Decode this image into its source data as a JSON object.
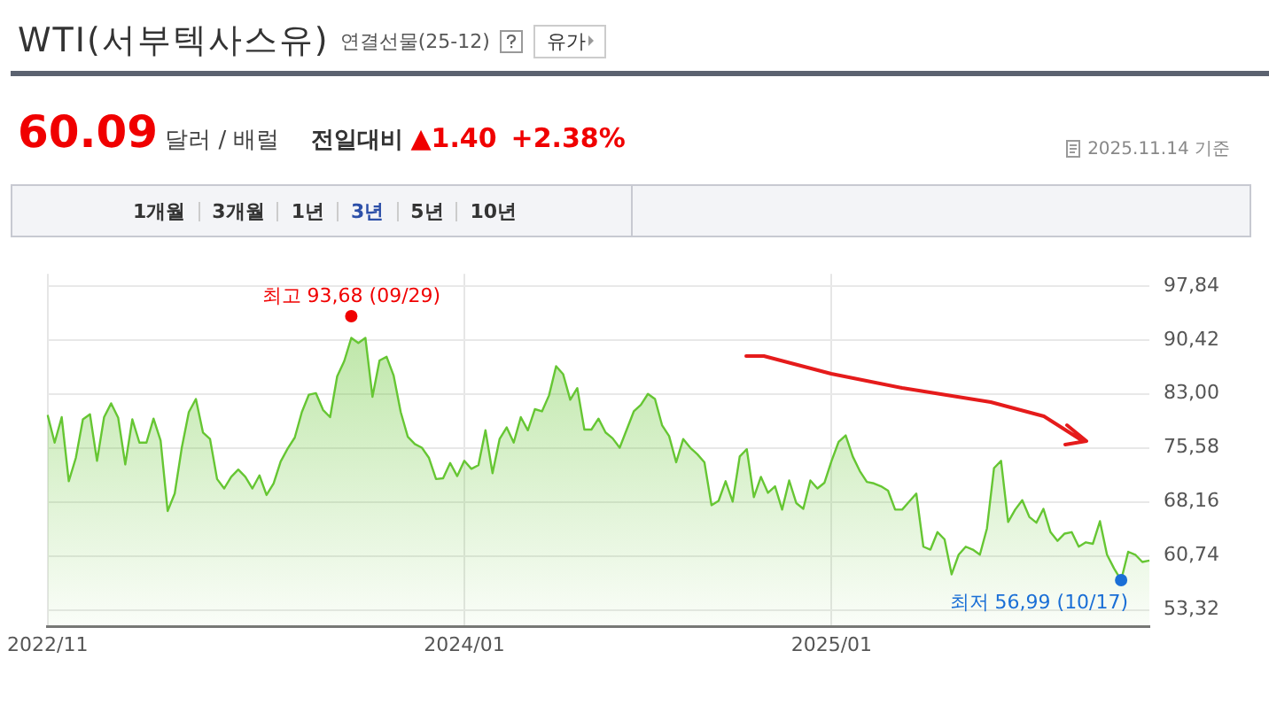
{
  "chart_data": {
    "type": "area",
    "title": "WTI(서부텍사스유)",
    "subtitle": "연결선물(25-12)",
    "categories": [
      "2022/11",
      null,
      null,
      null,
      null,
      null,
      null,
      null,
      null,
      null,
      null,
      null,
      null,
      null,
      null,
      null,
      null,
      null,
      null,
      null,
      null,
      null,
      null,
      null,
      null,
      null,
      null,
      null,
      null,
      null,
      null,
      null,
      null,
      null,
      null,
      null,
      null,
      null,
      null,
      null,
      null,
      null,
      null,
      null,
      null,
      null,
      null,
      null,
      null,
      null,
      null,
      null,
      null,
      null,
      null,
      null,
      null,
      null,
      null,
      "2024/01",
      null,
      null,
      null,
      null,
      null,
      null,
      null,
      null,
      null,
      null,
      null,
      null,
      null,
      null,
      null,
      null,
      null,
      null,
      null,
      null,
      null,
      null,
      null,
      null,
      null,
      null,
      null,
      null,
      null,
      null,
      null,
      null,
      null,
      null,
      null,
      null,
      null,
      null,
      null,
      null,
      null,
      null,
      null,
      null,
      null,
      null,
      null,
      null,
      null,
      null,
      null,
      "2025/01",
      null,
      null,
      null,
      null,
      null,
      null,
      null,
      null,
      null,
      null,
      null,
      null,
      null,
      null,
      null,
      null,
      null,
      null,
      null,
      null,
      null,
      null,
      null,
      null,
      null,
      null,
      null,
      null,
      null,
      null,
      null,
      null,
      null,
      null,
      null,
      null,
      null,
      null,
      null,
      null,
      null,
      null,
      null,
      null,
      null
    ],
    "series": [
      {
        "color": "#66c633",
        "values": [
          80.1,
          76.3,
          79.8,
          71.0,
          74.2,
          79.5,
          80.2,
          73.8,
          79.8,
          81.7,
          79.7,
          73.3,
          79.5,
          76.3,
          76.3,
          79.6,
          76.6,
          66.9,
          69.3,
          75.6,
          80.5,
          82.3,
          77.7,
          76.8,
          71.3,
          70.0,
          71.6,
          72.6,
          71.6,
          70.0,
          71.8,
          69.1,
          70.7,
          73.7,
          75.5,
          77.0,
          80.5,
          82.9,
          83.1,
          80.8,
          79.8,
          85.4,
          87.5,
          90.7,
          90.0,
          90.7,
          82.6,
          87.6,
          88.1,
          85.5,
          80.5,
          77.1,
          76.1,
          75.6,
          74.2,
          71.3,
          71.4,
          73.5,
          71.7,
          73.8,
          72.7,
          73.2,
          78.0,
          72.1,
          76.8,
          78.4,
          76.3,
          79.8,
          78.0,
          80.9,
          80.6,
          82.8,
          86.8,
          85.7,
          82.2,
          83.8,
          78.1,
          78.1,
          79.6,
          77.7,
          76.9,
          75.6,
          78.1,
          80.6,
          81.5,
          83.0,
          82.3,
          78.7,
          77.2,
          73.6,
          76.8,
          75.6,
          74.7,
          73.6,
          67.7,
          68.3,
          71.0,
          68.2,
          74.4,
          75.4,
          68.8,
          71.6,
          69.4,
          70.3,
          67.1,
          71.1,
          68.0,
          67.2,
          71.1,
          70.0,
          70.8,
          73.8,
          76.4,
          77.3,
          74.4,
          72.4,
          70.9,
          70.7,
          70.3,
          69.7,
          67.1,
          67.1,
          68.2,
          69.3,
          62.0,
          61.6,
          64.0,
          63.0,
          58.2,
          60.9,
          62.0,
          61.6,
          60.9,
          64.5,
          72.8,
          73.8,
          65.4,
          67.1,
          68.4,
          66.1,
          65.3,
          67.2,
          64.0,
          62.8,
          63.8,
          64.0,
          62.0,
          62.6,
          62.4,
          65.5,
          60.9,
          59.0,
          57.4,
          61.3,
          60.9,
          59.9,
          60.1
        ]
      }
    ],
    "ylim": [
      51,
      99.5
    ],
    "yticks": [
      {
        "value": 53.32,
        "label": "53,32"
      },
      {
        "value": 60.74,
        "label": "60,74"
      },
      {
        "value": 68.16,
        "label": "68,16"
      },
      {
        "value": 75.58,
        "label": "75,58"
      },
      {
        "value": 83.0,
        "label": "83,00"
      },
      {
        "value": 90.42,
        "label": "90,42"
      },
      {
        "value": 97.84,
        "label": "97,84"
      }
    ],
    "grid": true,
    "legend": false,
    "annotations": [
      "유가",
      "60.09",
      "달러 / 배럴",
      "전일대비",
      "▲1.40",
      "+2.38%",
      "2025.11.14 기준",
      "1개월",
      "3개월",
      "1년",
      "3년",
      "5년",
      "10년",
      {
        "text": "최고 93,68 (09/29)",
        "y": 93.68
      },
      "최저 56,99 (10/17)"
    ]
  }
}
